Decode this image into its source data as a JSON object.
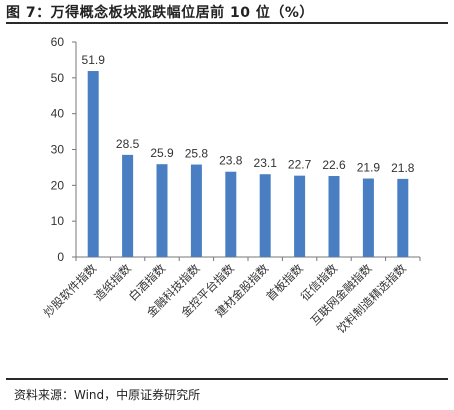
{
  "header": {
    "title": "图 7：万得概念板块涨跌幅位居前 10 位（%）"
  },
  "footer": {
    "source": "资料来源：Wind，中原证券研究所"
  },
  "chart_data": {
    "type": "bar",
    "title": "图 7：万得概念板块涨跌幅位居前 10 位（%）",
    "xlabel": "",
    "ylabel": "",
    "ylim": [
      0,
      60
    ],
    "yticks": [
      0,
      10,
      20,
      30,
      40,
      50,
      60
    ],
    "grid": false,
    "legend": "none",
    "bar_color": "#4a7ec2",
    "categories": [
      "炒股软件指数",
      "造纸指数",
      "白酒指数",
      "金融科技指数",
      "金控平台指数",
      "建材金股指数",
      "首板指数",
      "征信指数",
      "互联网金融指数",
      "饮料制造精选指数"
    ],
    "values": [
      51.9,
      28.5,
      25.9,
      25.8,
      23.8,
      23.1,
      22.7,
      22.6,
      21.9,
      21.8
    ],
    "data_labels": [
      "51.9",
      "28.5",
      "25.9",
      "25.8",
      "23.8",
      "23.1",
      "22.7",
      "22.6",
      "21.9",
      "21.8"
    ]
  }
}
